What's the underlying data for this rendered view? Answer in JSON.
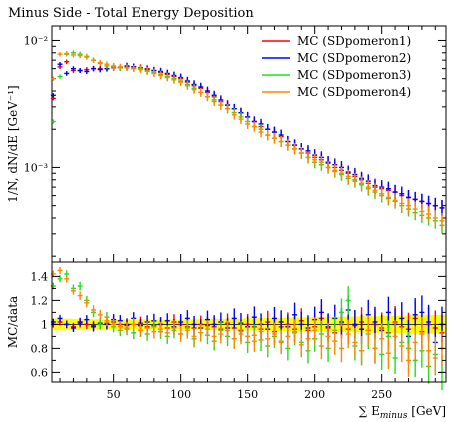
{
  "chart_data": [
    {
      "type": "scatter",
      "panel": "main",
      "title": "Minus Side - Total Energy Deposition",
      "ylabel": "1/N, dN/dE [GeV⁻¹]",
      "yscale": "log",
      "ylim": [
        0.00018,
        0.013
      ],
      "xlim": [
        4,
        298
      ],
      "yticks": [
        {
          "value": 0.01,
          "label": "10⁻²"
        },
        {
          "value": 0.001,
          "label": "10⁻³"
        }
      ],
      "legend": {
        "position": "top-right",
        "entries": [
          {
            "label": "MC (SDpomeron1)",
            "color": "#ff0000"
          },
          {
            "label": "MC (SDpomeron2)",
            "color": "#0000ff"
          },
          {
            "label": "MC (SDpomeron3)",
            "color": "#22dd22"
          },
          {
            "label": "MC (SDpomeron4)",
            "color": "#ff8800"
          }
        ]
      },
      "series": [
        {
          "color": "#ff0000",
          "x": [
            5,
            10,
            15,
            20,
            25,
            30,
            35,
            40,
            45,
            50,
            55,
            60,
            65,
            70,
            75,
            80,
            85,
            90,
            95,
            100,
            105,
            110,
            115,
            120,
            125,
            130,
            135,
            140,
            145,
            150,
            155,
            160,
            165,
            170,
            175,
            180,
            185,
            190,
            195,
            200,
            205,
            210,
            215,
            220,
            225,
            230,
            235,
            240,
            245,
            250,
            255,
            260,
            265,
            270,
            275,
            280,
            285,
            290,
            295
          ],
          "y": [
            0.0035,
            0.0062,
            0.0068,
            0.0058,
            0.0058,
            0.0059,
            0.006,
            0.006,
            0.006,
            0.0061,
            0.0061,
            0.0062,
            0.0062,
            0.0061,
            0.006,
            0.0058,
            0.0056,
            0.0054,
            0.0052,
            0.005,
            0.0047,
            0.0044,
            0.0042,
            0.0039,
            0.0036,
            0.0033,
            0.0031,
            0.0029,
            0.0027,
            0.0025,
            0.0023,
            0.0021,
            0.002,
            0.0019,
            0.00175,
            0.0016,
            0.0015,
            0.0014,
            0.0013,
            0.0012,
            0.00115,
            0.00108,
            0.001,
            0.00095,
            0.0009,
            0.00085,
            0.0008,
            0.00075,
            0.0007,
            0.00068,
            0.00066,
            0.00064,
            0.0006,
            0.00058,
            0.00056,
            0.00054,
            0.00052,
            0.0005,
            0.00048
          ]
        },
        {
          "color": "#0000ff",
          "x": [
            5,
            10,
            15,
            20,
            25,
            30,
            35,
            40,
            45,
            50,
            55,
            60,
            65,
            70,
            75,
            80,
            85,
            90,
            95,
            100,
            105,
            110,
            115,
            120,
            125,
            130,
            135,
            140,
            145,
            150,
            155,
            160,
            165,
            170,
            175,
            180,
            185,
            190,
            195,
            200,
            205,
            210,
            215,
            220,
            225,
            230,
            235,
            240,
            245,
            250,
            255,
            260,
            265,
            270,
            275,
            280,
            285,
            290,
            295
          ],
          "y": [
            0.0037,
            0.0065,
            0.0055,
            0.006,
            0.0058,
            0.0057,
            0.006,
            0.0059,
            0.006,
            0.0062,
            0.0061,
            0.0063,
            0.0062,
            0.006,
            0.0059,
            0.0058,
            0.0057,
            0.0055,
            0.0053,
            0.0051,
            0.0048,
            0.0045,
            0.0043,
            0.004,
            0.0037,
            0.0034,
            0.0031,
            0.0029,
            0.0027,
            0.0025,
            0.0023,
            0.0022,
            0.002,
            0.0019,
            0.0018,
            0.0016,
            0.0015,
            0.0014,
            0.00135,
            0.00125,
            0.0012,
            0.0011,
            0.00105,
            0.001,
            0.00092,
            0.00088,
            0.00082,
            0.00078,
            0.00072,
            0.0007,
            0.00068,
            0.00064,
            0.00062,
            0.00058,
            0.00056,
            0.00054,
            0.00052,
            0.0005,
            0.00048
          ]
        },
        {
          "color": "#22dd22",
          "x": [
            5,
            10,
            15,
            20,
            25,
            30,
            35,
            40,
            45,
            50,
            55,
            60,
            65,
            70,
            75,
            80,
            85,
            90,
            95,
            100,
            105,
            110,
            115,
            120,
            125,
            130,
            135,
            140,
            145,
            150,
            155,
            160,
            165,
            170,
            175,
            180,
            185,
            190,
            195,
            200,
            205,
            210,
            215,
            220,
            225,
            230,
            235,
            240,
            245,
            250,
            255,
            260,
            265,
            270,
            275,
            280,
            285,
            290,
            295
          ],
          "y": [
            0.0023,
            0.0052,
            0.0078,
            0.008,
            0.0078,
            0.0075,
            0.007,
            0.0066,
            0.0063,
            0.0062,
            0.0061,
            0.0061,
            0.006,
            0.006,
            0.0058,
            0.0056,
            0.0054,
            0.0052,
            0.005,
            0.0048,
            0.0045,
            0.0042,
            0.0039,
            0.0036,
            0.0034,
            0.0031,
            0.0029,
            0.0027,
            0.0025,
            0.0023,
            0.0021,
            0.002,
            0.0018,
            0.0017,
            0.0016,
            0.0015,
            0.0014,
            0.0013,
            0.0012,
            0.0011,
            0.00105,
            0.001,
            0.00093,
            0.00088,
            0.00082,
            0.00078,
            0.00073,
            0.00068,
            0.00064,
            0.0006,
            0.00057,
            0.00054,
            0.0005,
            0.00047,
            0.00044,
            0.00042,
            0.0004,
            0.00038,
            0.00035
          ]
        },
        {
          "color": "#ff8800",
          "x": [
            5,
            10,
            15,
            20,
            25,
            30,
            35,
            40,
            45,
            50,
            55,
            60,
            65,
            70,
            75,
            80,
            85,
            90,
            95,
            100,
            105,
            110,
            115,
            120,
            125,
            130,
            135,
            140,
            145,
            150,
            155,
            160,
            165,
            170,
            175,
            180,
            185,
            190,
            195,
            200,
            205,
            210,
            215,
            220,
            225,
            230,
            235,
            240,
            245,
            250,
            255,
            260,
            265,
            270,
            275,
            280,
            285,
            290,
            295
          ],
          "y": [
            0.005,
            0.0078,
            0.0079,
            0.0077,
            0.0076,
            0.0074,
            0.007,
            0.0067,
            0.0065,
            0.0063,
            0.0062,
            0.0061,
            0.006,
            0.0059,
            0.0057,
            0.0055,
            0.0053,
            0.0051,
            0.0049,
            0.0047,
            0.0044,
            0.0041,
            0.0039,
            0.0036,
            0.0033,
            0.0031,
            0.0029,
            0.0026,
            0.0024,
            0.0022,
            0.0021,
            0.0019,
            0.0018,
            0.0017,
            0.0016,
            0.0015,
            0.0014,
            0.0013,
            0.0012,
            0.00115,
            0.0011,
            0.001,
            0.00095,
            0.0009,
            0.00085,
            0.0008,
            0.00075,
            0.0007,
            0.00066,
            0.00062,
            0.00058,
            0.00055,
            0.00052,
            0.0005,
            0.00047,
            0.00045,
            0.00043,
            0.0004,
            0.00038
          ]
        }
      ]
    },
    {
      "type": "scatter",
      "panel": "ratio",
      "ylabel": "MC/data",
      "xlabel": "∑ E_minus [GeV]",
      "xlim": [
        4,
        298
      ],
      "ylim": [
        0.52,
        1.52
      ],
      "xticks": [
        50,
        100,
        150,
        200,
        250
      ],
      "yticks": [
        0.6,
        0.8,
        1,
        1.2,
        1.4
      ],
      "band": {
        "color": "#ffff00",
        "x": [
          5,
          50,
          100,
          150,
          200,
          250,
          298
        ],
        "lower": [
          0.95,
          0.96,
          0.96,
          0.95,
          0.94,
          0.93,
          0.92
        ],
        "upper": [
          1.05,
          1.04,
          1.04,
          1.05,
          1.06,
          1.07,
          1.08
        ]
      },
      "series": [
        {
          "color": "#ff0000",
          "x": [
            5,
            10,
            15,
            20,
            25,
            30,
            35,
            40,
            45,
            50,
            55,
            60,
            65,
            70,
            75,
            80,
            85,
            90,
            95,
            100,
            105,
            110,
            115,
            120,
            125,
            130,
            135,
            140,
            145,
            150,
            155,
            160,
            165,
            170,
            175,
            180,
            185,
            190,
            195,
            200,
            205,
            210,
            215,
            220,
            225,
            230,
            235,
            240,
            245,
            250,
            255,
            260,
            265,
            270,
            275,
            280,
            285,
            290,
            295
          ],
          "y": [
            1.0,
            1.02,
            1.0,
            0.98,
            1.01,
            1.0,
            0.99,
            1.0,
            1.01,
            1.02,
            1.0,
            0.99,
            1.0,
            1.01,
            0.98,
            0.99,
            1.0,
            0.97,
            1.02,
            1.0,
            0.98,
            0.97,
            1.0,
            0.99,
            0.98,
            0.96,
            1.01,
            0.97,
            0.95,
            1.0,
            0.98,
            0.96,
            1.02,
            0.94,
            0.98,
            1.0,
            0.96,
            1.03,
            0.95,
            0.98,
            1.05,
            0.97,
            0.93,
            1.0,
            0.96,
            0.99,
            1.02,
            0.95,
            1.0,
            0.97,
            0.93,
            1.02,
            0.98,
            0.96,
            1.05,
            0.94,
            1.0,
            0.97,
            0.93
          ]
        },
        {
          "color": "#0000ff",
          "x": [
            5,
            10,
            15,
            20,
            25,
            30,
            35,
            40,
            45,
            50,
            55,
            60,
            65,
            70,
            75,
            80,
            85,
            90,
            95,
            100,
            105,
            110,
            115,
            120,
            125,
            130,
            135,
            140,
            145,
            150,
            155,
            160,
            165,
            170,
            175,
            180,
            185,
            190,
            195,
            200,
            205,
            210,
            215,
            220,
            225,
            230,
            235,
            240,
            245,
            250,
            255,
            260,
            265,
            270,
            275,
            280,
            285,
            290,
            295
          ],
          "y": [
            1.02,
            1.05,
            1.0,
            0.97,
            1.02,
            1.04,
            0.98,
            1.01,
            1.0,
            1.04,
            1.03,
            1.0,
            1.05,
            0.99,
            1.02,
            1.03,
            1.0,
            1.03,
            0.98,
            1.02,
            1.05,
            1.0,
            0.97,
            1.04,
            1.0,
            1.02,
            0.97,
            1.05,
            1.01,
            0.98,
            1.06,
            1.0,
            0.96,
            1.05,
            1.02,
            0.98,
            1.08,
            1.0,
            0.97,
            1.04,
            1.1,
            0.98,
            1.05,
            1.02,
            1.12,
            1.0,
            0.96,
            1.08,
            1.02,
            0.95,
            1.1,
            1.0,
            1.05,
            0.9,
            1.08,
            1.1,
            1.02,
            0.85,
            1.0
          ]
        },
        {
          "color": "#22dd22",
          "x": [
            5,
            10,
            15,
            20,
            25,
            30,
            35,
            40,
            45,
            50,
            55,
            60,
            65,
            70,
            75,
            80,
            85,
            90,
            95,
            100,
            105,
            110,
            115,
            120,
            125,
            130,
            135,
            140,
            145,
            150,
            155,
            160,
            165,
            170,
            175,
            180,
            185,
            190,
            195,
            200,
            205,
            210,
            215,
            220,
            225,
            230,
            235,
            240,
            245,
            250,
            255,
            260,
            265,
            270,
            275,
            280,
            285,
            290,
            295
          ],
          "y": [
            1.32,
            1.38,
            1.42,
            1.3,
            1.32,
            1.2,
            1.1,
            1.0,
            1.06,
            0.98,
            0.95,
            0.96,
            0.93,
            0.95,
            0.92,
            0.98,
            0.94,
            0.9,
            0.95,
            0.92,
            0.97,
            0.88,
            0.93,
            0.91,
            0.86,
            0.95,
            0.9,
            0.88,
            0.94,
            0.85,
            0.91,
            0.87,
            0.82,
            0.9,
            0.86,
            0.8,
            0.93,
            0.85,
            0.78,
            0.88,
            0.92,
            0.8,
            0.95,
            1.1,
            1.2,
            0.82,
            0.78,
            0.92,
            0.8,
            0.75,
            0.9,
            0.72,
            0.85,
            0.8,
            0.7,
            0.78,
            0.65,
            0.75,
            0.6
          ]
        },
        {
          "color": "#ff8800",
          "x": [
            5,
            10,
            15,
            20,
            25,
            30,
            35,
            40,
            45,
            50,
            55,
            60,
            65,
            70,
            75,
            80,
            85,
            90,
            95,
            100,
            105,
            110,
            115,
            120,
            125,
            130,
            135,
            140,
            145,
            150,
            155,
            160,
            165,
            170,
            175,
            180,
            185,
            190,
            195,
            200,
            205,
            210,
            215,
            220,
            225,
            230,
            235,
            240,
            245,
            250,
            255,
            260,
            265,
            270,
            275,
            280,
            285,
            290,
            295
          ],
          "y": [
            1.42,
            1.45,
            1.38,
            1.28,
            1.24,
            1.18,
            1.12,
            1.08,
            1.03,
            1.0,
            0.98,
            0.97,
            1.0,
            0.95,
            0.97,
            0.94,
            0.96,
            0.93,
            0.97,
            0.92,
            0.95,
            0.9,
            0.93,
            0.96,
            0.9,
            0.92,
            0.95,
            0.88,
            0.92,
            0.9,
            0.86,
            0.94,
            0.88,
            0.92,
            0.85,
            0.9,
            0.94,
            0.83,
            0.88,
            0.95,
            0.82,
            0.9,
            0.86,
            0.8,
            0.92,
            0.85,
            0.78,
            0.95,
            0.8,
            0.88,
            0.76,
            0.9,
            0.82,
            0.7,
            0.85,
            0.92,
            0.78,
            0.72,
            0.8
          ]
        }
      ]
    }
  ]
}
